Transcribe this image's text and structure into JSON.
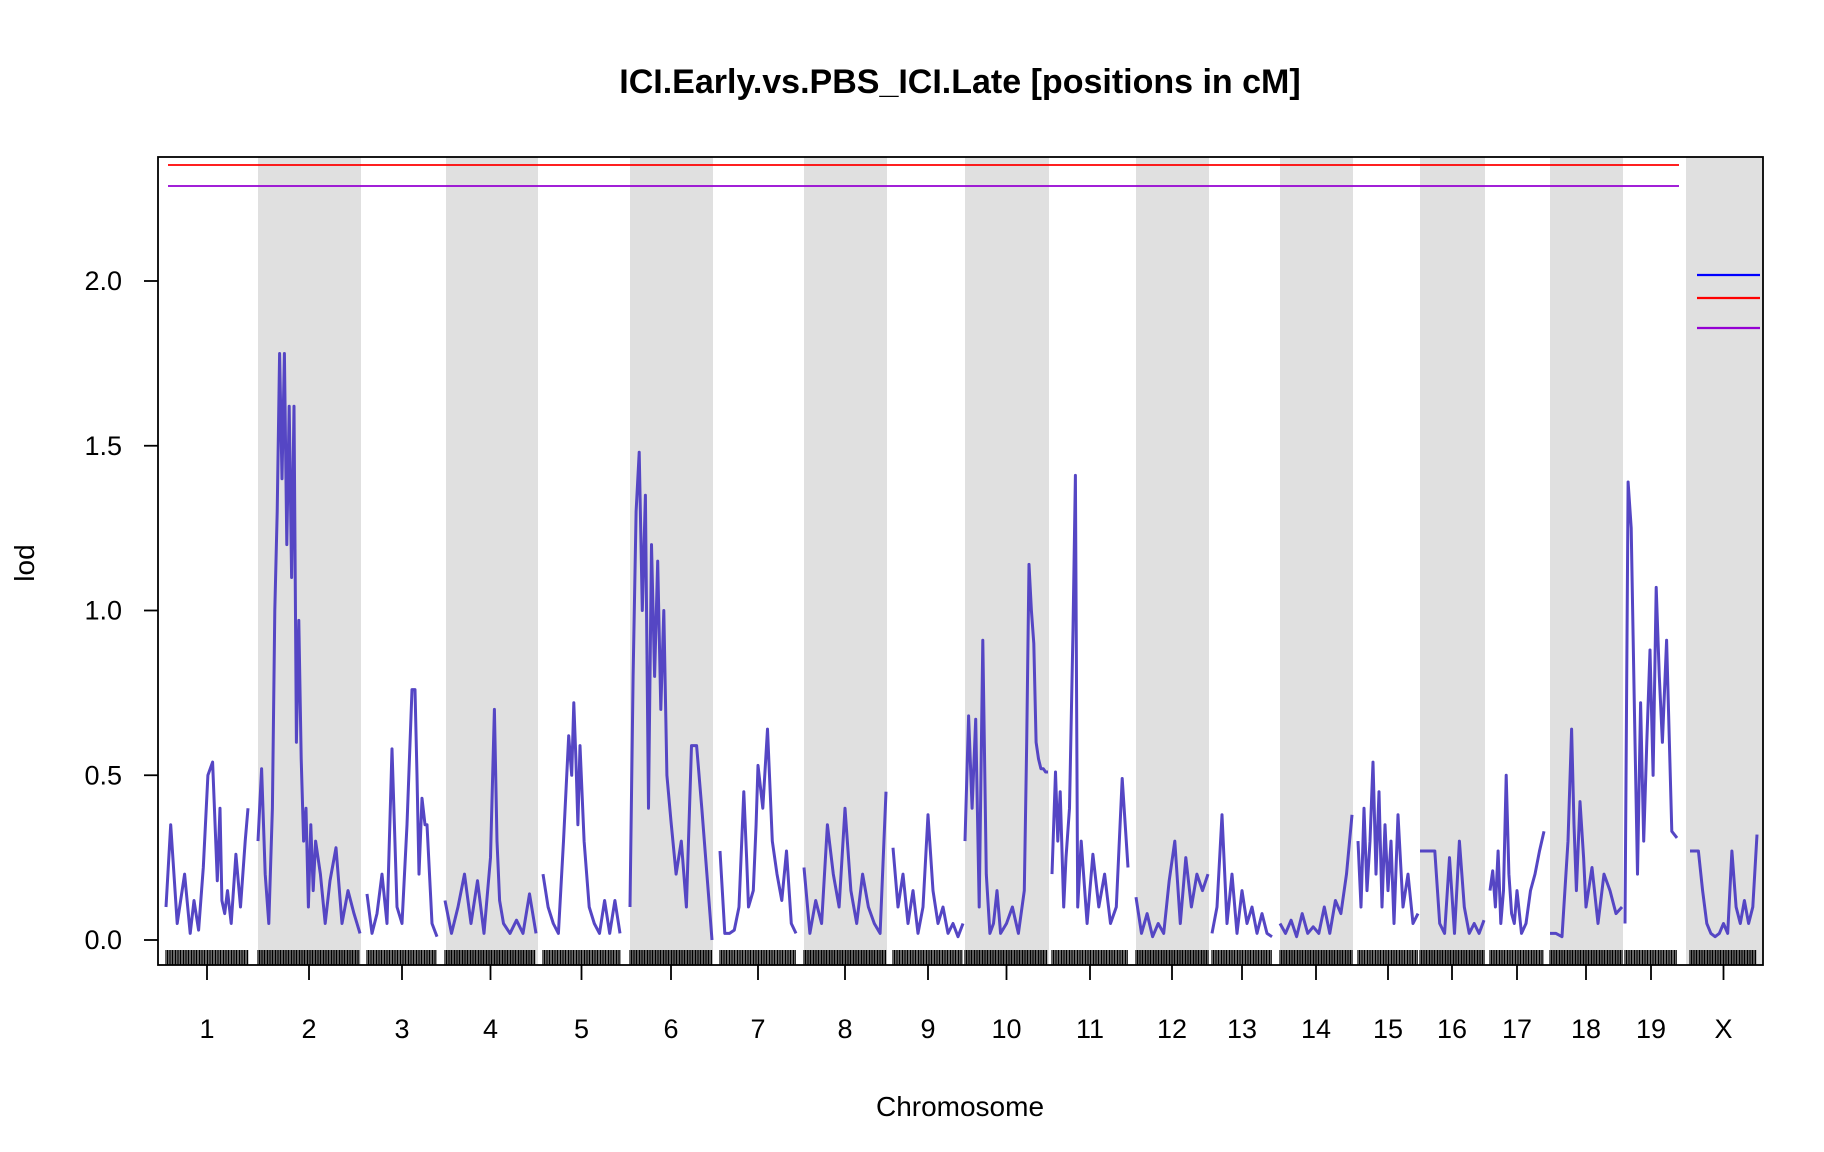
{
  "chart_data": {
    "type": "line",
    "title": "ICI.Early.vs.PBS_ICI.Late [positions in cM]",
    "xlabel": "Chromosome",
    "ylabel": "lod",
    "ylim": [
      -0.08,
      2.37
    ],
    "yticks": [
      0.0,
      0.5,
      1.0,
      1.5,
      2.0
    ],
    "ytick_labels": [
      "0.0",
      "0.5",
      "1.0",
      "1.5",
      "2.0"
    ],
    "chromosomes": [
      "1",
      "2",
      "3",
      "4",
      "5",
      "6",
      "7",
      "8",
      "9",
      "10",
      "11",
      "12",
      "13",
      "14",
      "15",
      "16",
      "17",
      "18",
      "19",
      "X"
    ],
    "shaded_chromosomes": [
      "2",
      "4",
      "6",
      "8",
      "10",
      "12",
      "14",
      "16",
      "18",
      "X"
    ],
    "colors": {
      "lod_curve": "#5546c4",
      "shading": "#e0e0e0",
      "threshold_red": "#ff0000",
      "threshold_purple": "#9400d3",
      "threshold_blue": "#0000ff",
      "axis": "#000000"
    },
    "thresholds": [
      {
        "name": "red",
        "value": 2.35
      },
      {
        "name": "purple",
        "value": 2.29
      }
    ],
    "legend": {
      "placement": "right",
      "entries": [
        {
          "name": "blue",
          "value": 2.02
        },
        {
          "name": "red",
          "value": 1.95
        },
        {
          "name": "purple",
          "value": 1.86
        }
      ]
    },
    "series": [
      {
        "chr": "1",
        "x": [
          0,
          5,
          12,
          20,
          26,
          30,
          35,
          40,
          45,
          50,
          55,
          58,
          60,
          63,
          66,
          70,
          75,
          80,
          85,
          88
        ],
        "y": [
          0.1,
          0.35,
          0.05,
          0.2,
          0.02,
          0.12,
          0.03,
          0.22,
          0.5,
          0.54,
          0.18,
          0.4,
          0.12,
          0.08,
          0.15,
          0.05,
          0.26,
          0.1,
          0.3,
          0.4
        ]
      },
      {
        "chr": "2",
        "x": [
          0,
          3,
          6,
          9,
          12,
          14,
          16,
          18,
          20,
          22,
          24,
          26,
          28,
          30,
          32,
          34,
          36,
          38,
          40,
          42,
          44,
          46,
          48,
          52,
          56,
          60,
          65,
          70,
          75,
          80,
          85
        ],
        "y": [
          0.3,
          0.52,
          0.2,
          0.05,
          0.4,
          1.0,
          1.3,
          1.78,
          1.4,
          1.78,
          1.2,
          1.62,
          1.1,
          1.62,
          0.6,
          0.97,
          0.55,
          0.3,
          0.4,
          0.1,
          0.35,
          0.15,
          0.3,
          0.2,
          0.05,
          0.18,
          0.28,
          0.05,
          0.15,
          0.08,
          0.02
        ]
      },
      {
        "chr": "3",
        "x": [
          0,
          5,
          10,
          15,
          20,
          25,
          30,
          35,
          40,
          45,
          48,
          50,
          52,
          55,
          58,
          60,
          65,
          70
        ],
        "y": [
          0.14,
          0.02,
          0.08,
          0.2,
          0.05,
          0.58,
          0.1,
          0.05,
          0.35,
          0.76,
          0.76,
          0.5,
          0.2,
          0.43,
          0.35,
          0.35,
          0.05,
          0.01
        ]
      },
      {
        "chr": "4",
        "x": [
          0,
          5,
          10,
          15,
          20,
          25,
          30,
          35,
          38,
          40,
          42,
          45,
          50,
          55,
          60,
          65,
          70
        ],
        "y": [
          0.12,
          0.02,
          0.1,
          0.2,
          0.05,
          0.18,
          0.02,
          0.25,
          0.7,
          0.3,
          0.12,
          0.05,
          0.02,
          0.06,
          0.02,
          0.14,
          0.02
        ]
      },
      {
        "chr": "5",
        "x": [
          0,
          5,
          10,
          15,
          20,
          25,
          28,
          30,
          32,
          34,
          36,
          40,
          45,
          50,
          55,
          60,
          65,
          70,
          75
        ],
        "y": [
          0.2,
          0.1,
          0.05,
          0.02,
          0.3,
          0.62,
          0.5,
          0.72,
          0.55,
          0.35,
          0.59,
          0.3,
          0.1,
          0.05,
          0.02,
          0.12,
          0.02,
          0.12,
          0.02
        ]
      },
      {
        "chr": "6",
        "x": [
          0,
          3,
          6,
          9,
          12,
          15,
          18,
          21,
          24,
          27,
          30,
          33,
          36,
          40,
          45,
          50,
          55,
          60,
          65,
          70,
          75,
          80
        ],
        "y": [
          0.1,
          0.8,
          1.3,
          1.48,
          1.0,
          1.35,
          0.4,
          1.2,
          0.8,
          1.15,
          0.7,
          1.0,
          0.5,
          0.36,
          0.2,
          0.3,
          0.1,
          0.59,
          0.59,
          0.4,
          0.2,
          0.0
        ]
      },
      {
        "chr": "7",
        "x": [
          0,
          5,
          10,
          15,
          20,
          25,
          28,
          30,
          35,
          38,
          40,
          45,
          50,
          55,
          60,
          65,
          70,
          75,
          80
        ],
        "y": [
          0.27,
          0.02,
          0.02,
          0.03,
          0.1,
          0.45,
          0.25,
          0.1,
          0.15,
          0.35,
          0.53,
          0.4,
          0.64,
          0.3,
          0.2,
          0.12,
          0.27,
          0.05,
          0.02
        ]
      },
      {
        "chr": "8",
        "x": [
          0,
          5,
          10,
          15,
          20,
          25,
          30,
          35,
          38,
          40,
          45,
          50,
          55,
          60,
          65,
          70
        ],
        "y": [
          0.22,
          0.02,
          0.12,
          0.05,
          0.35,
          0.2,
          0.1,
          0.4,
          0.25,
          0.15,
          0.05,
          0.2,
          0.1,
          0.05,
          0.02,
          0.45
        ]
      },
      {
        "chr": "9",
        "x": [
          0,
          5,
          10,
          15,
          20,
          25,
          30,
          35,
          40,
          45,
          50,
          55,
          60,
          65,
          70
        ],
        "y": [
          0.28,
          0.1,
          0.2,
          0.05,
          0.15,
          0.02,
          0.1,
          0.38,
          0.15,
          0.05,
          0.1,
          0.02,
          0.05,
          0.01,
          0.05
        ]
      },
      {
        "chr": "10",
        "x": [
          0,
          3,
          6,
          9,
          12,
          15,
          18,
          21,
          24,
          27,
          30,
          35,
          40,
          45,
          50,
          52,
          54,
          56,
          58,
          60,
          62,
          64,
          66,
          68,
          70
        ],
        "y": [
          0.3,
          0.68,
          0.4,
          0.67,
          0.1,
          0.91,
          0.2,
          0.02,
          0.05,
          0.15,
          0.02,
          0.05,
          0.1,
          0.02,
          0.15,
          0.6,
          1.14,
          1.0,
          0.9,
          0.6,
          0.55,
          0.52,
          0.52,
          0.51,
          0.51
        ]
      },
      {
        "chr": "11",
        "x": [
          0,
          3,
          5,
          7,
          10,
          12,
          15,
          18,
          20,
          22,
          25,
          30,
          35,
          40,
          45,
          50,
          55,
          60,
          65
        ],
        "y": [
          0.2,
          0.51,
          0.3,
          0.45,
          0.1,
          0.25,
          0.4,
          0.94,
          1.41,
          0.1,
          0.3,
          0.05,
          0.26,
          0.1,
          0.2,
          0.05,
          0.1,
          0.49,
          0.22
        ]
      },
      {
        "chr": "12",
        "x": [
          0,
          5,
          10,
          15,
          20,
          25,
          30,
          35,
          40,
          45,
          50,
          55,
          60,
          65
        ],
        "y": [
          0.13,
          0.02,
          0.08,
          0.01,
          0.05,
          0.02,
          0.18,
          0.3,
          0.05,
          0.25,
          0.1,
          0.2,
          0.15,
          0.2
        ]
      },
      {
        "chr": "13",
        "x": [
          0,
          5,
          10,
          15,
          20,
          25,
          30,
          35,
          40,
          45,
          50,
          55,
          60
        ],
        "y": [
          0.02,
          0.1,
          0.38,
          0.05,
          0.2,
          0.02,
          0.15,
          0.05,
          0.1,
          0.02,
          0.08,
          0.02,
          0.01
        ]
      },
      {
        "chr": "14",
        "x": [
          0,
          5,
          10,
          15,
          20,
          25,
          30,
          35,
          40,
          45,
          50,
          55,
          60,
          65
        ],
        "y": [
          0.05,
          0.02,
          0.06,
          0.01,
          0.08,
          0.02,
          0.04,
          0.02,
          0.1,
          0.02,
          0.12,
          0.08,
          0.2,
          0.38
        ]
      },
      {
        "chr": "15",
        "x": [
          0,
          3,
          6,
          9,
          12,
          15,
          18,
          21,
          24,
          27,
          30,
          33,
          36,
          40,
          45,
          50,
          55,
          60
        ],
        "y": [
          0.3,
          0.1,
          0.4,
          0.15,
          0.3,
          0.54,
          0.2,
          0.45,
          0.1,
          0.35,
          0.15,
          0.3,
          0.05,
          0.38,
          0.1,
          0.2,
          0.05,
          0.08
        ]
      },
      {
        "chr": "16",
        "x": [
          0,
          5,
          10,
          15,
          20,
          25,
          30,
          35,
          40,
          45,
          50,
          55,
          60,
          65
        ],
        "y": [
          0.27,
          0.27,
          0.27,
          0.27,
          0.05,
          0.02,
          0.25,
          0.02,
          0.3,
          0.1,
          0.02,
          0.05,
          0.02,
          0.06
        ]
      },
      {
        "chr": "17",
        "x": [
          0,
          3,
          6,
          9,
          12,
          15,
          18,
          21,
          24,
          27,
          30,
          35,
          40,
          45,
          50,
          55,
          60
        ],
        "y": [
          0.15,
          0.21,
          0.1,
          0.27,
          0.05,
          0.15,
          0.5,
          0.2,
          0.08,
          0.05,
          0.15,
          0.02,
          0.05,
          0.15,
          0.2,
          0.27,
          0.33
        ]
      },
      {
        "chr": "18",
        "x": [
          0,
          5,
          10,
          15,
          18,
          20,
          22,
          25,
          28,
          30,
          35,
          40,
          45,
          50,
          55,
          60
        ],
        "y": [
          0.02,
          0.02,
          0.01,
          0.3,
          0.64,
          0.35,
          0.15,
          0.42,
          0.25,
          0.1,
          0.22,
          0.05,
          0.2,
          0.15,
          0.08,
          0.1
        ]
      },
      {
        "chr": "19",
        "x": [
          0,
          3,
          6,
          9,
          12,
          15,
          18,
          21,
          24,
          27,
          30,
          33,
          36,
          40,
          45,
          50
        ],
        "y": [
          0.05,
          1.39,
          1.25,
          0.7,
          0.2,
          0.72,
          0.3,
          0.6,
          0.88,
          0.5,
          1.07,
          0.8,
          0.6,
          0.91,
          0.33,
          0.31
        ]
      },
      {
        "chr": "X",
        "x": [
          0,
          5,
          10,
          15,
          20,
          25,
          30,
          35,
          40,
          45,
          50,
          55,
          60,
          65,
          70,
          75,
          80
        ],
        "y": [
          0.27,
          0.27,
          0.27,
          0.15,
          0.05,
          0.02,
          0.01,
          0.02,
          0.05,
          0.02,
          0.27,
          0.1,
          0.05,
          0.12,
          0.05,
          0.1,
          0.32
        ]
      }
    ]
  }
}
